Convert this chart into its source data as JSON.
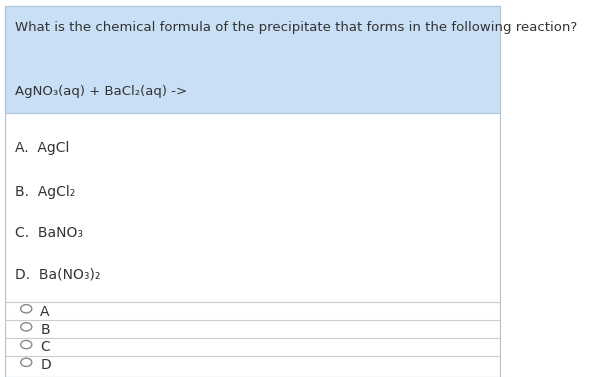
{
  "background_color": "#ffffff",
  "header_bg_color": "#c8dff5",
  "question_text": "What is the chemical formula of the precipitate that forms in the following reaction?",
  "reaction_text": "AgNO₃(aq) + BaCl₂(aq) ->",
  "option_texts": [
    "A.  AgCl",
    "B.  AgCl₂",
    "C.  BaNO₃",
    "D.  Ba(NO₃)₂"
  ],
  "radio_labels": [
    "A",
    "B",
    "C",
    "D"
  ],
  "border_color": "#b0c4d8",
  "text_color": "#333333",
  "radio_color": "#888888",
  "line_color": "#cccccc",
  "question_fontsize": 9.5,
  "reaction_fontsize": 9.5,
  "option_fontsize": 10,
  "radio_fontsize": 10,
  "fig_width": 6.09,
  "fig_height": 3.77
}
